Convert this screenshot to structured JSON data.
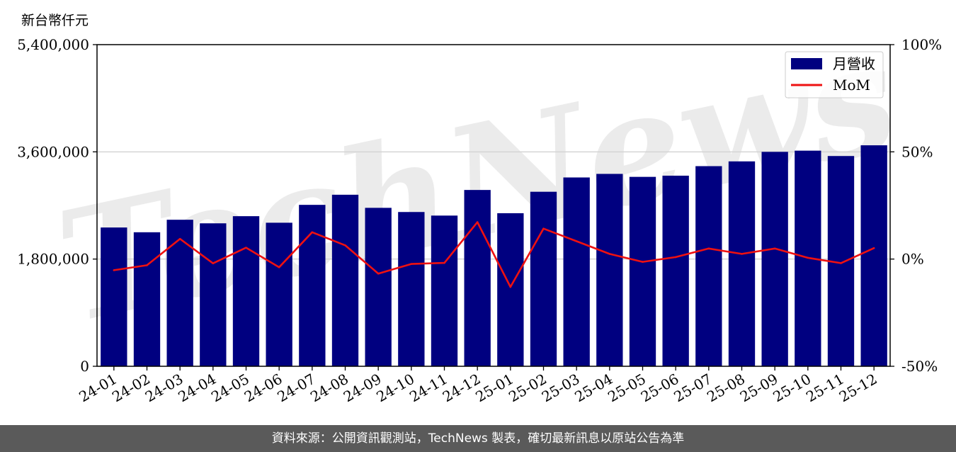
{
  "chart_data": {
    "type": "bar",
    "ylabel": "新台幣仟元",
    "categories": [
      "24-01",
      "24-02",
      "24-03",
      "24-04",
      "24-05",
      "24-06",
      "24-07",
      "24-08",
      "24-09",
      "24-10",
      "24-11",
      "24-12",
      "25-01",
      "25-02",
      "25-03",
      "25-04",
      "25-05",
      "25-06",
      "25-07",
      "25-08",
      "25-09",
      "25-10",
      "25-11",
      "25-12"
    ],
    "series": [
      {
        "name": "月營收",
        "type": "bar",
        "axis": "left",
        "color": "#000080",
        "values": [
          2330000,
          2250000,
          2460000,
          2400000,
          2520000,
          2410000,
          2710000,
          2880000,
          2660000,
          2590000,
          2530000,
          2960000,
          2570000,
          2930000,
          3170000,
          3230000,
          3180000,
          3200000,
          3360000,
          3440000,
          3600000,
          3620000,
          3530000,
          3710000
        ]
      },
      {
        "name": "MoM",
        "type": "line",
        "axis": "right",
        "color": "#ee1111",
        "values": [
          -5.2,
          -2.9,
          9.4,
          -2.0,
          5.3,
          -3.8,
          12.5,
          6.4,
          -6.8,
          -2.3,
          -1.8,
          17.2,
          -13.0,
          14.2,
          8.3,
          2.4,
          -1.3,
          0.9,
          4.9,
          2.4,
          4.9,
          0.6,
          -1.9,
          5.1
        ]
      }
    ],
    "ylim": [
      0,
      5400000
    ],
    "y_ticks": [
      "0",
      "1,800,000",
      "3,600,000",
      "5,400,000"
    ],
    "y_tick_values": [
      0,
      1800000,
      3600000,
      5400000
    ],
    "y2lim": [
      -50,
      100
    ],
    "y2_ticks": [
      "-50%",
      "0%",
      "50%",
      "100%"
    ],
    "y2_tick_values": [
      -50,
      0,
      50,
      100
    ],
    "legend_position": "top-right",
    "grid": "horizontal"
  },
  "watermark": "TechNews",
  "footer": "資料來源：公開資訊觀測站，TechNews 製表，確切最新訊息以原站公告為準"
}
